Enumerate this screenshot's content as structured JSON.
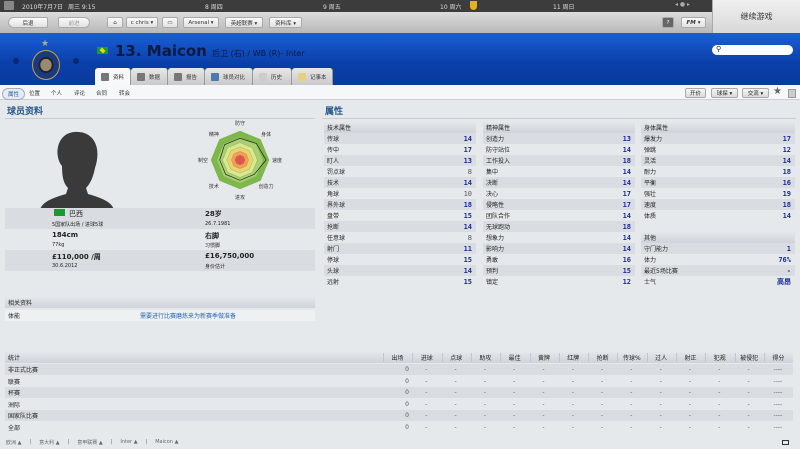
{
  "topbar": {
    "date": "2010年7月7日",
    "weekday_time": "周三 9:15",
    "days": [
      "8 周四",
      "9 周五",
      "10 周六",
      "11 周日"
    ],
    "continue": "继续游戏"
  },
  "toolbar": {
    "back": "后退",
    "forward": "前进",
    "manager": "c chris ▾",
    "club": "Arsenal ▾",
    "league": "英超联赛 ▾",
    "database": "资料库 ▾",
    "help": "?",
    "fm": "FM ▾"
  },
  "header": {
    "number_name": "13. Maicon",
    "position": "后卫 (右) / WB (R)- Inter",
    "nationality_flag": "Brazil",
    "brand_color": "#0b45b0"
  },
  "tabs": [
    "资料",
    "数据",
    "报告",
    "球员对比",
    "历史",
    "记事本"
  ],
  "subnav": {
    "items": [
      "属性",
      "位置",
      "个人",
      "评论",
      "合同",
      "转会"
    ],
    "actions": [
      "开价",
      "球探 ▾",
      "交流 ▾"
    ]
  },
  "profile": {
    "title": "球员资料",
    "nation": "巴西",
    "caps": "5国家队出场 / 进球5球",
    "age": "28岁",
    "dob": "26.7.1981",
    "height": "184cm",
    "weight": "77kg",
    "foot": "右脚",
    "foot_label": "习惯脚",
    "wage": "£110,000 /周",
    "contract": "30.6.2012",
    "value": "£16,750,000",
    "value_label": "身价估计"
  },
  "radar": {
    "labels": [
      "防守",
      "身体",
      "速度",
      "创造力",
      "进攻",
      "技术",
      "制空",
      "精神"
    ],
    "values": [
      15,
      16,
      18,
      14,
      14,
      14,
      14,
      15
    ]
  },
  "related": {
    "title": "相关资料",
    "label": "体能",
    "text": "需要进行比赛磨炼来为新赛季做准备"
  },
  "attributes": {
    "title": "属性",
    "technical": {
      "title": "技术属性",
      "items": [
        [
          "传球",
          14
        ],
        [
          "传中",
          17
        ],
        [
          "盯人",
          13
        ],
        [
          "罚点球",
          8
        ],
        [
          "技术",
          14
        ],
        [
          "角球",
          10
        ],
        [
          "界外球",
          18
        ],
        [
          "盘带",
          15
        ],
        [
          "抢断",
          14
        ],
        [
          "任意球",
          8
        ],
        [
          "射门",
          11
        ],
        [
          "停球",
          15
        ],
        [
          "头球",
          14
        ],
        [
          "远射",
          15
        ]
      ]
    },
    "mental": {
      "title": "精神属性",
      "items": [
        [
          "创造力",
          13
        ],
        [
          "防守站位",
          14
        ],
        [
          "工作投入",
          18
        ],
        [
          "集中",
          14
        ],
        [
          "决断",
          14
        ],
        [
          "决心",
          17
        ],
        [
          "侵略性",
          17
        ],
        [
          "团队合作",
          14
        ],
        [
          "无球跑动",
          18
        ],
        [
          "想象力",
          14
        ],
        [
          "影响力",
          14
        ],
        [
          "勇敢",
          16
        ],
        [
          "预判",
          15
        ],
        [
          "镇定",
          12
        ]
      ]
    },
    "physical": {
      "title": "身体属性",
      "items": [
        [
          "爆发力",
          17
        ],
        [
          "弹跳",
          12
        ],
        [
          "灵活",
          14
        ],
        [
          "耐力",
          18
        ],
        [
          "平衡",
          16
        ],
        [
          "强壮",
          19
        ],
        [
          "速度",
          18
        ],
        [
          "体质",
          14
        ]
      ]
    },
    "other": {
      "title": "其他",
      "items": [
        [
          "守门能力",
          "1"
        ],
        [
          "体力",
          "76%"
        ],
        [
          "最近5场比赛",
          "-"
        ],
        [
          "士气",
          "高昂"
        ]
      ]
    }
  },
  "stats": {
    "headers": [
      "统计",
      "出场",
      "进球",
      "点球",
      "助攻",
      "最佳",
      "黄牌",
      "红牌",
      "抢断",
      "传球%",
      "过人",
      "射正",
      "犯规",
      "被侵犯",
      "得分"
    ],
    "rows": [
      "非正式比赛",
      "联赛",
      "杯赛",
      "洲际",
      "国家队比赛",
      "全部"
    ],
    "apps": "0",
    "empty": "-",
    "rating_empty": "----"
  },
  "breadcrumb": [
    "欧洲 ▲",
    "意大利 ▲",
    "意甲联赛 ▲",
    "Inter ▲",
    "Maicon ▲"
  ]
}
